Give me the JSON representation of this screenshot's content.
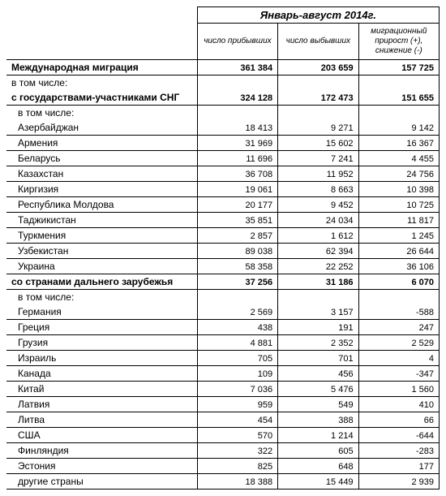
{
  "period_title": "Январь-август 2014г.",
  "headers": {
    "col1": "число прибывших",
    "col2": "число выбывших",
    "col3": "миграционный прирост (+), снижение (-)"
  },
  "rows": [
    {
      "label": "Международная миграция",
      "v1": "361 384",
      "v2": "203 659",
      "v3": "157 725",
      "bold": true,
      "indent": 0,
      "underline": true
    },
    {
      "label": "в том числе:",
      "v1": "",
      "v2": "",
      "v3": "",
      "bold": false,
      "indent": 0,
      "underline": false
    },
    {
      "label": "с государствами-участниками СНГ",
      "v1": "324 128",
      "v2": "172 473",
      "v3": "151 655",
      "bold": true,
      "indent": 0,
      "underline": true,
      "multiline": true
    },
    {
      "label": "в том числе:",
      "v1": "",
      "v2": "",
      "v3": "",
      "bold": false,
      "indent": 1,
      "underline": false
    },
    {
      "label": "Азербайджан",
      "v1": "18 413",
      "v2": "9 271",
      "v3": "9 142",
      "bold": false,
      "indent": 1,
      "underline": true
    },
    {
      "label": "Армения",
      "v1": "31 969",
      "v2": "15 602",
      "v3": "16 367",
      "bold": false,
      "indent": 1,
      "underline": true
    },
    {
      "label": "Беларусь",
      "v1": "11 696",
      "v2": "7 241",
      "v3": "4 455",
      "bold": false,
      "indent": 1,
      "underline": true
    },
    {
      "label": "Казахстан",
      "v1": "36 708",
      "v2": "11 952",
      "v3": "24 756",
      "bold": false,
      "indent": 1,
      "underline": true
    },
    {
      "label": "Киргизия",
      "v1": "19 061",
      "v2": "8 663",
      "v3": "10 398",
      "bold": false,
      "indent": 1,
      "underline": true
    },
    {
      "label": "Республика Молдова",
      "v1": "20 177",
      "v2": "9 452",
      "v3": "10 725",
      "bold": false,
      "indent": 1,
      "underline": true
    },
    {
      "label": "Таджикистан",
      "v1": "35 851",
      "v2": "24 034",
      "v3": "11 817",
      "bold": false,
      "indent": 1,
      "underline": true
    },
    {
      "label": "Туркмения",
      "v1": "2 857",
      "v2": "1 612",
      "v3": "1 245",
      "bold": false,
      "indent": 1,
      "underline": true
    },
    {
      "label": "Узбекистан",
      "v1": "89 038",
      "v2": "62 394",
      "v3": "26 644",
      "bold": false,
      "indent": 1,
      "underline": true
    },
    {
      "label": "Украина",
      "v1": "58 358",
      "v2": "22 252",
      "v3": "36 106",
      "bold": false,
      "indent": 1,
      "underline": true
    },
    {
      "label": "со странами дальнего зарубежья",
      "v1": "37 256",
      "v2": "31 186",
      "v3": "6 070",
      "bold": true,
      "indent": 0,
      "underline": true,
      "multiline": true
    },
    {
      "label": "в том числе:",
      "v1": "",
      "v2": "",
      "v3": "",
      "bold": false,
      "indent": 1,
      "underline": false
    },
    {
      "label": "Германия",
      "v1": "2 569",
      "v2": "3 157",
      "v3": "-588",
      "bold": false,
      "indent": 1,
      "underline": true
    },
    {
      "label": "Греция",
      "v1": "438",
      "v2": "191",
      "v3": "247",
      "bold": false,
      "indent": 1,
      "underline": true
    },
    {
      "label": "Грузия",
      "v1": "4 881",
      "v2": "2 352",
      "v3": "2 529",
      "bold": false,
      "indent": 1,
      "underline": true
    },
    {
      "label": "Израиль",
      "v1": "705",
      "v2": "701",
      "v3": "4",
      "bold": false,
      "indent": 1,
      "underline": true
    },
    {
      "label": "Канада",
      "v1": "109",
      "v2": "456",
      "v3": "-347",
      "bold": false,
      "indent": 1,
      "underline": true
    },
    {
      "label": "Китай",
      "v1": "7 036",
      "v2": "5 476",
      "v3": "1 560",
      "bold": false,
      "indent": 1,
      "underline": true
    },
    {
      "label": "Латвия",
      "v1": "959",
      "v2": "549",
      "v3": "410",
      "bold": false,
      "indent": 1,
      "underline": true
    },
    {
      "label": "Литва",
      "v1": "454",
      "v2": "388",
      "v3": "66",
      "bold": false,
      "indent": 1,
      "underline": true
    },
    {
      "label": "США",
      "v1": "570",
      "v2": "1 214",
      "v3": "-644",
      "bold": false,
      "indent": 1,
      "underline": true
    },
    {
      "label": "Финляндия",
      "v1": "322",
      "v2": "605",
      "v3": "-283",
      "bold": false,
      "indent": 1,
      "underline": true
    },
    {
      "label": "Эстония",
      "v1": "825",
      "v2": "648",
      "v3": "177",
      "bold": false,
      "indent": 1,
      "underline": true
    },
    {
      "label": "другие страны",
      "v1": "18 388",
      "v2": "15 449",
      "v3": "2 939",
      "bold": false,
      "indent": 1,
      "underline": true
    }
  ]
}
